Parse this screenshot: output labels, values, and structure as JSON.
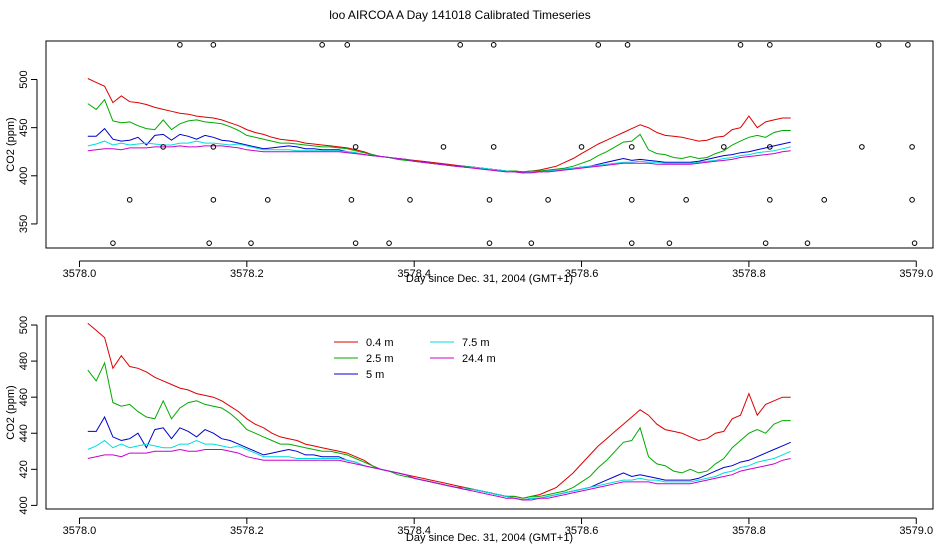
{
  "figure_title": "loo AIRCOA A  Day 141018  Calibrated Timeseries",
  "colors": {
    "0.4 m": "#dd0000",
    "2.5 m": "#00aa00",
    "5 m": "#0000cc",
    "7.5 m": "#00dddd",
    "24.4 m": "#cc00cc"
  },
  "chart_data": [
    {
      "type": "line",
      "title": "",
      "xlabel": "Day since Dec. 31, 2004 (GMT+1)",
      "ylabel": "CO2 (ppm)",
      "xlim": [
        3577.96,
        3579.02
      ],
      "ylim": [
        325,
        540
      ],
      "xticks": [
        "3578.0",
        "3578.2",
        "3578.4",
        "3578.6",
        "3578.8",
        "3579.0"
      ],
      "yticks": [
        "350",
        "400",
        "450",
        "500"
      ],
      "grid": false,
      "legend": null,
      "x_start": 3578.01,
      "x_step": 0.01,
      "series": [
        {
          "key": "0.4 m",
          "values": [
            501,
            497,
            493,
            476,
            483,
            477,
            476,
            474,
            471,
            469,
            467,
            465,
            464,
            462,
            461,
            460,
            458,
            455,
            452,
            448,
            445,
            443,
            440,
            438,
            437,
            436,
            434,
            433,
            432,
            431,
            430,
            429,
            427,
            425,
            422,
            420,
            419,
            418,
            417,
            416,
            415,
            414,
            413,
            412,
            411,
            410,
            409,
            408,
            407,
            406,
            405,
            405,
            404,
            405,
            406,
            408,
            410,
            414,
            418,
            423,
            428,
            433,
            437,
            441,
            445,
            449,
            453,
            450,
            445,
            442,
            441,
            440,
            438,
            436,
            437,
            440,
            441,
            448,
            450,
            462,
            450,
            456,
            458,
            460,
            460
          ]
        },
        {
          "key": "2.5 m",
          "values": [
            475,
            469,
            479,
            457,
            455,
            456,
            452,
            449,
            448,
            458,
            448,
            454,
            457,
            458,
            456,
            455,
            454,
            451,
            447,
            442,
            440,
            438,
            436,
            434,
            434,
            433,
            432,
            431,
            430,
            430,
            429,
            428,
            426,
            424,
            422,
            420,
            419,
            417,
            416,
            415,
            414,
            413,
            412,
            411,
            410,
            410,
            409,
            408,
            407,
            406,
            405,
            405,
            404,
            405,
            405,
            406,
            407,
            408,
            410,
            413,
            416,
            421,
            425,
            430,
            435,
            436,
            443,
            427,
            423,
            422,
            419,
            418,
            420,
            418,
            419,
            423,
            426,
            432,
            436,
            440,
            442,
            440,
            445,
            447,
            447
          ]
        },
        {
          "key": "5 m",
          "values": [
            441,
            441,
            449,
            438,
            436,
            437,
            440,
            432,
            442,
            443,
            437,
            443,
            441,
            438,
            442,
            440,
            437,
            436,
            434,
            432,
            430,
            428,
            429,
            430,
            431,
            430,
            428,
            428,
            427,
            427,
            427,
            425,
            424,
            422,
            421,
            420,
            419,
            418,
            417,
            415,
            414,
            413,
            412,
            411,
            410,
            409,
            409,
            408,
            407,
            406,
            405,
            404,
            403,
            404,
            404,
            405,
            406,
            407,
            408,
            409,
            410,
            412,
            414,
            416,
            418,
            416,
            417,
            416,
            415,
            414,
            414,
            414,
            414,
            415,
            417,
            419,
            421,
            422,
            424,
            425,
            427,
            429,
            431,
            433,
            435
          ]
        },
        {
          "key": "7.5 m",
          "values": [
            431,
            433,
            436,
            432,
            434,
            432,
            433,
            434,
            433,
            432,
            432,
            434,
            434,
            436,
            434,
            434,
            433,
            432,
            433,
            431,
            429,
            427,
            427,
            427,
            427,
            426,
            426,
            426,
            426,
            426,
            426,
            425,
            424,
            422,
            421,
            420,
            419,
            418,
            417,
            415,
            414,
            413,
            412,
            411,
            410,
            409,
            409,
            408,
            407,
            406,
            405,
            404,
            403,
            404,
            404,
            405,
            406,
            407,
            408,
            409,
            410,
            411,
            412,
            413,
            414,
            414,
            415,
            414,
            414,
            413,
            413,
            413,
            413,
            414,
            415,
            416,
            418,
            419,
            421,
            422,
            424,
            425,
            426,
            428,
            430
          ]
        },
        {
          "key": "24.4 m",
          "values": [
            426,
            427,
            428,
            428,
            427,
            429,
            429,
            429,
            430,
            430,
            430,
            431,
            430,
            430,
            431,
            431,
            431,
            430,
            429,
            427,
            426,
            425,
            425,
            425,
            425,
            425,
            425,
            425,
            425,
            425,
            425,
            424,
            423,
            422,
            421,
            420,
            419,
            418,
            417,
            415,
            414,
            413,
            412,
            411,
            410,
            409,
            408,
            407,
            406,
            405,
            404,
            404,
            403,
            403,
            404,
            404,
            405,
            406,
            407,
            408,
            409,
            410,
            411,
            412,
            413,
            413,
            413,
            413,
            412,
            412,
            412,
            412,
            412,
            413,
            414,
            415,
            416,
            417,
            419,
            420,
            421,
            422,
            423,
            425,
            426
          ]
        }
      ],
      "points": [
        [
          3578.04,
          330
        ],
        [
          3578.06,
          375
        ],
        [
          3578.1,
          430
        ],
        [
          3578.12,
          536
        ],
        [
          3578.155,
          330
        ],
        [
          3578.16,
          375
        ],
        [
          3578.16,
          430
        ],
        [
          3578.16,
          536
        ],
        [
          3578.205,
          330
        ],
        [
          3578.225,
          375
        ],
        [
          3578.29,
          536
        ],
        [
          3578.32,
          536
        ],
        [
          3578.325,
          375
        ],
        [
          3578.33,
          330
        ],
        [
          3578.33,
          430
        ],
        [
          3578.37,
          330
        ],
        [
          3578.395,
          375
        ],
        [
          3578.435,
          430
        ],
        [
          3578.455,
          536
        ],
        [
          3578.49,
          330
        ],
        [
          3578.49,
          375
        ],
        [
          3578.495,
          430
        ],
        [
          3578.495,
          536
        ],
        [
          3578.54,
          330
        ],
        [
          3578.56,
          375
        ],
        [
          3578.6,
          430
        ],
        [
          3578.62,
          536
        ],
        [
          3578.655,
          536
        ],
        [
          3578.66,
          375
        ],
        [
          3578.66,
          330
        ],
        [
          3578.66,
          430
        ],
        [
          3578.705,
          330
        ],
        [
          3578.725,
          375
        ],
        [
          3578.77,
          430
        ],
        [
          3578.79,
          536
        ],
        [
          3578.82,
          330
        ],
        [
          3578.825,
          375
        ],
        [
          3578.825,
          430
        ],
        [
          3578.825,
          536
        ],
        [
          3578.87,
          330
        ],
        [
          3578.89,
          375
        ],
        [
          3578.935,
          430
        ],
        [
          3578.955,
          536
        ],
        [
          3578.99,
          536
        ],
        [
          3578.995,
          375
        ],
        [
          3578.995,
          430
        ],
        [
          3578.998,
          330
        ]
      ]
    },
    {
      "type": "line",
      "title": "",
      "xlabel": "Day since Dec. 31, 2004 (GMT+1)",
      "ylabel": "CO2 (ppm)",
      "xlim": [
        3577.96,
        3579.02
      ],
      "ylim": [
        398,
        505
      ],
      "xticks": [
        "3578.0",
        "3578.2",
        "3578.4",
        "3578.6",
        "3578.8",
        "3579.0"
      ],
      "yticks": [
        "400",
        "420",
        "440",
        "460",
        "480",
        "500"
      ],
      "grid": false,
      "legend": "top-left",
      "legend_entries": [
        "0.4 m",
        "2.5 m",
        "5 m",
        "7.5 m",
        "24.4 m"
      ],
      "series_ref": "same data as panel 1 series"
    }
  ]
}
